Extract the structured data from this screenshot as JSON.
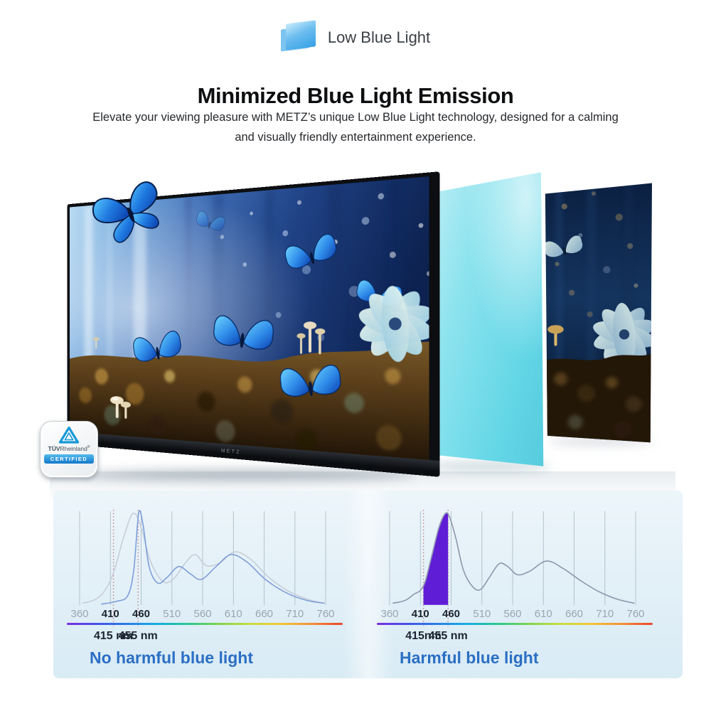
{
  "badge": {
    "icon": "low-blue-light-screen-icon",
    "label": "Low Blue Light"
  },
  "heading": "Minimized Blue Light Emission",
  "description": {
    "line1": "Elevate your viewing pleasure with METZ’s unique Low Blue Light technology, designed for a calming",
    "line2": "and visually friendly entertainment experience."
  },
  "hero": {
    "tv_brand": "METZ",
    "certification_badge": {
      "brand_bold": "TÜV",
      "brand_regular": "Rheinland",
      "registered_mark": "®",
      "label": "CERTIFIED"
    }
  },
  "colors": {
    "accent_blue_text": "#2b6fc4",
    "gridline": "#b6c2cd",
    "tick_gray": "#9aa6b2",
    "tick_bold": "#1b2430",
    "dotted_marker": "#c4898f",
    "curve_standard_left": "#c7cdda",
    "curve_low_blue": "#7e9ed8",
    "curve_standard_right": "#8f96ad",
    "harmful_fill": "#5f1dd6",
    "harmful_stroke": "#8b5ce8",
    "spectrum_gradient": [
      "#7b2ee0",
      "#4653e6",
      "#2a7fe8",
      "#15b1e0",
      "#2ec98e",
      "#84d44c",
      "#c9df45",
      "#f3c63b",
      "#f39038",
      "#e9452f"
    ]
  },
  "chart_data": [
    {
      "type": "line",
      "title": "No harmful blue light",
      "x_unit": "nm",
      "xlim": [
        360,
        760
      ],
      "ylim": [
        0,
        1
      ],
      "grid": "vertical",
      "x_ticks": [
        360,
        410,
        460,
        510,
        560,
        610,
        660,
        710,
        760
      ],
      "bold_ticks": [
        410,
        460
      ],
      "annotations": [
        {
          "text": "415 nm",
          "nm": 415
        },
        {
          "text": "455 nm",
          "nm": 455
        }
      ],
      "series": [
        {
          "name": "standard spectrum",
          "color": "curve_standard_left",
          "points": [
            [
              365,
              0.02
            ],
            [
              385,
              0.06
            ],
            [
              400,
              0.15
            ],
            [
              415,
              0.35
            ],
            [
              432,
              0.75
            ],
            [
              447,
              1.0
            ],
            [
              460,
              0.85
            ],
            [
              475,
              0.48
            ],
            [
              495,
              0.26
            ],
            [
              512,
              0.28
            ],
            [
              532,
              0.46
            ],
            [
              548,
              0.55
            ],
            [
              566,
              0.43
            ],
            [
              588,
              0.46
            ],
            [
              612,
              0.58
            ],
            [
              638,
              0.5
            ],
            [
              668,
              0.3
            ],
            [
              700,
              0.15
            ],
            [
              732,
              0.06
            ],
            [
              758,
              0.02
            ]
          ]
        },
        {
          "name": "low blue light spectrum",
          "color": "curve_low_blue",
          "points": [
            [
              395,
              0.01
            ],
            [
              420,
              0.04
            ],
            [
              438,
              0.1
            ],
            [
              448,
              0.38
            ],
            [
              456,
              1.0
            ],
            [
              463,
              0.88
            ],
            [
              473,
              0.42
            ],
            [
              487,
              0.24
            ],
            [
              502,
              0.3
            ],
            [
              521,
              0.42
            ],
            [
              540,
              0.34
            ],
            [
              558,
              0.28
            ],
            [
              582,
              0.42
            ],
            [
              606,
              0.55
            ],
            [
              632,
              0.47
            ],
            [
              662,
              0.28
            ],
            [
              697,
              0.13
            ],
            [
              730,
              0.05
            ],
            [
              758,
              0.02
            ]
          ]
        }
      ]
    },
    {
      "type": "area",
      "title": "Harmful blue light",
      "x_unit": "nm",
      "xlim": [
        360,
        760
      ],
      "ylim": [
        0,
        1
      ],
      "grid": "vertical",
      "x_ticks": [
        360,
        410,
        460,
        510,
        560,
        610,
        660,
        710,
        760
      ],
      "bold_ticks": [
        410,
        460
      ],
      "annotations": [
        {
          "text": "415nm",
          "nm": 415
        },
        {
          "text": "455 nm",
          "nm": 455
        }
      ],
      "highlight_band_nm": [
        415,
        455
      ],
      "series": [
        {
          "name": "standard spectrum",
          "color": "curve_standard_right",
          "points": [
            [
              365,
              0.02
            ],
            [
              385,
              0.05
            ],
            [
              400,
              0.12
            ],
            [
              410,
              0.16
            ],
            [
              418,
              0.26
            ],
            [
              428,
              0.52
            ],
            [
              440,
              0.84
            ],
            [
              451,
              1.0
            ],
            [
              458,
              0.95
            ],
            [
              468,
              0.72
            ],
            [
              480,
              0.38
            ],
            [
              495,
              0.2
            ],
            [
              508,
              0.17
            ],
            [
              522,
              0.3
            ],
            [
              538,
              0.45
            ],
            [
              552,
              0.42
            ],
            [
              568,
              0.33
            ],
            [
              588,
              0.37
            ],
            [
              615,
              0.48
            ],
            [
              642,
              0.4
            ],
            [
              672,
              0.26
            ],
            [
              702,
              0.14
            ],
            [
              732,
              0.06
            ],
            [
              758,
              0.02
            ]
          ]
        }
      ]
    }
  ]
}
